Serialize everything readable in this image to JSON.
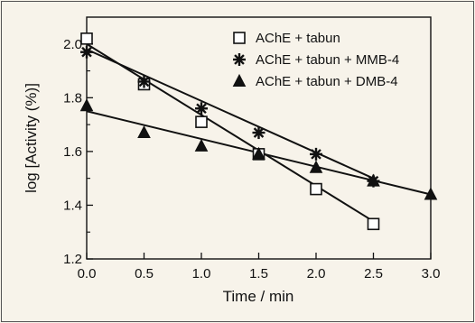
{
  "chart_data": {
    "type": "scatter",
    "xlabel": "Time / min",
    "ylabel": "log [Activity (%)]",
    "xlim": [
      0.0,
      3.0
    ],
    "ylim": [
      1.2,
      2.1
    ],
    "x_ticks": [
      "0.0",
      "0.5",
      "1.0",
      "1.5",
      "2.0",
      "2.5",
      "3.0"
    ],
    "y_ticks": [
      "1.2",
      "1.4",
      "1.6",
      "1.8",
      "2.0"
    ],
    "legend_position": "top-right",
    "grid": false,
    "series": [
      {
        "name": "AChE + tabun",
        "marker": "open-square",
        "x": [
          0.0,
          0.5,
          1.0,
          1.5,
          2.0,
          2.5
        ],
        "y": [
          2.02,
          1.85,
          1.71,
          1.59,
          1.46,
          1.33
        ],
        "fit": [
          [
            0.0,
            2.0
          ],
          [
            2.5,
            1.34
          ]
        ]
      },
      {
        "name": "AChE + tabun + MMB-4",
        "marker": "asterisk",
        "x": [
          0.0,
          0.5,
          1.0,
          1.5,
          2.0,
          2.5
        ],
        "y": [
          1.97,
          1.86,
          1.76,
          1.67,
          1.59,
          1.49
        ],
        "fit": [
          [
            0.0,
            1.98
          ],
          [
            2.5,
            1.5
          ]
        ]
      },
      {
        "name": "AChE + tabun + DMB-4",
        "marker": "filled-triangle",
        "x": [
          0.0,
          0.5,
          1.0,
          1.5,
          2.0,
          2.5,
          3.0
        ],
        "y": [
          1.77,
          1.67,
          1.62,
          1.59,
          1.54,
          1.49,
          1.44
        ],
        "fit": [
          [
            0.0,
            1.75
          ],
          [
            3.0,
            1.44
          ]
        ]
      }
    ]
  }
}
